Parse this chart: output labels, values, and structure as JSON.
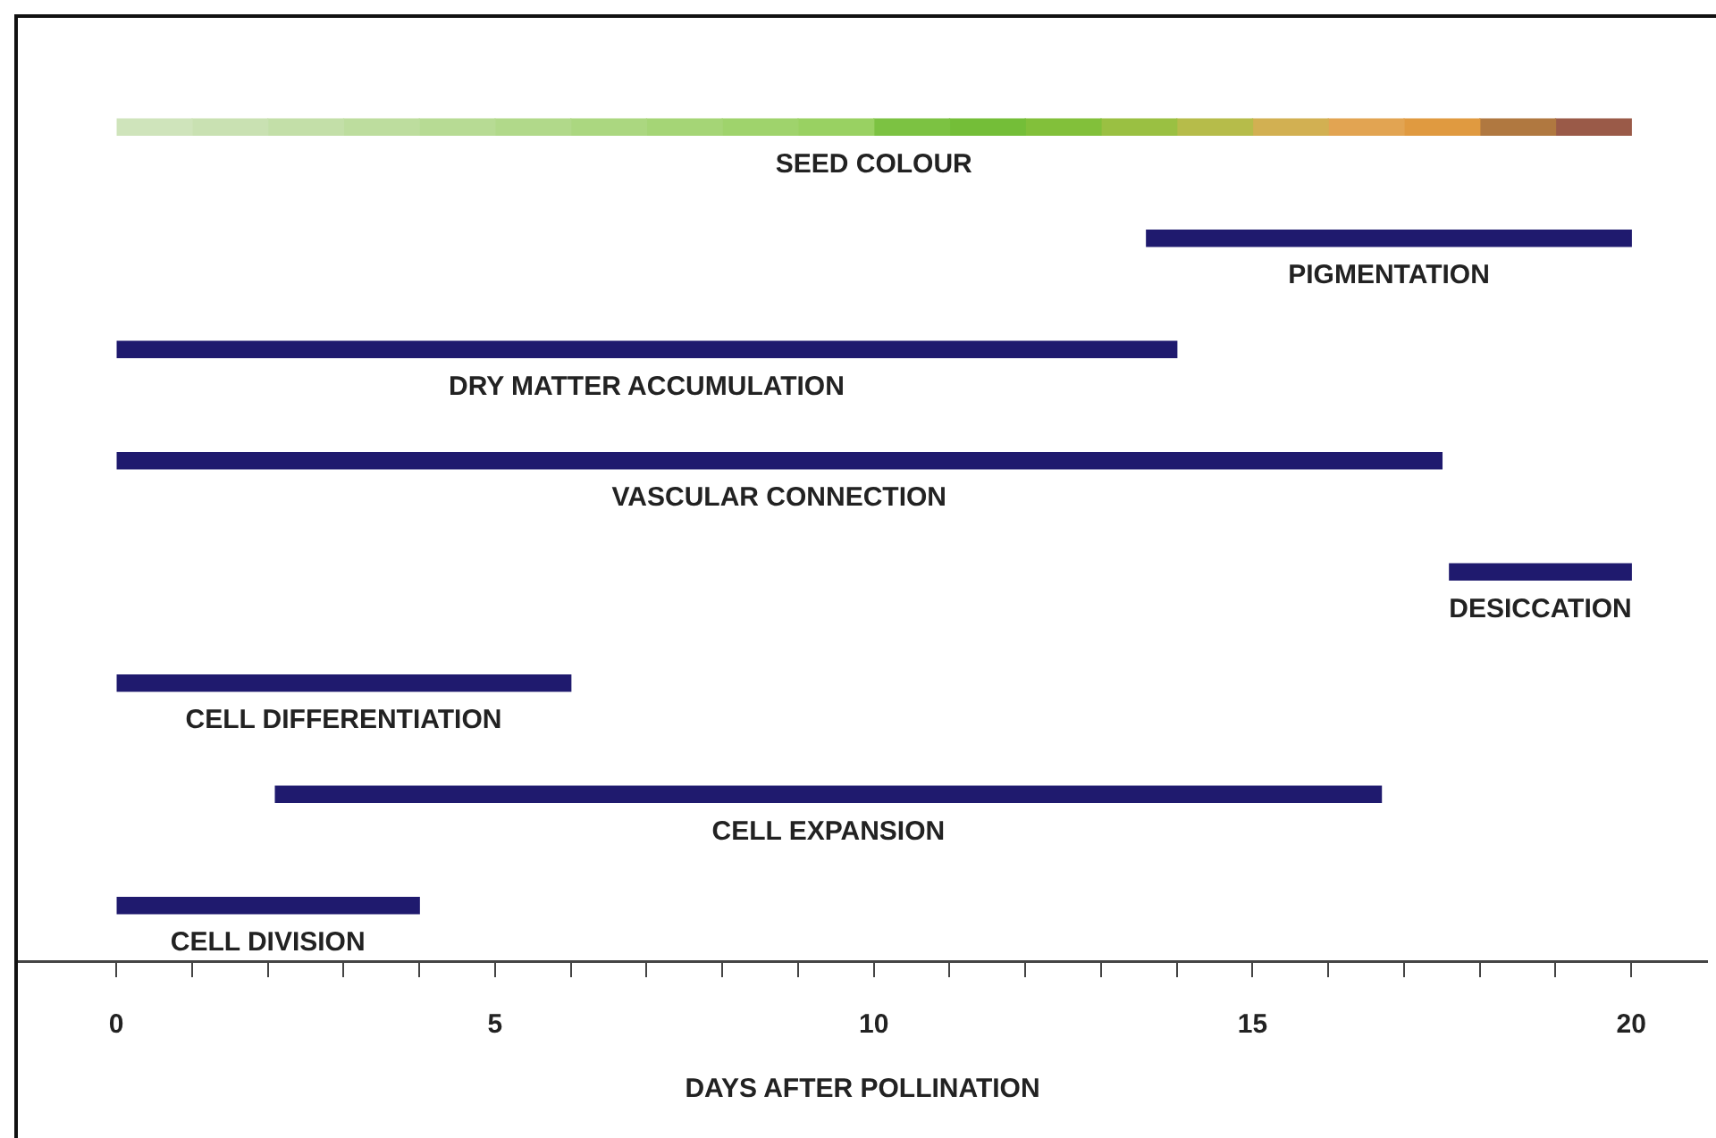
{
  "chart_data": {
    "type": "bar",
    "orientation": "horizontal",
    "tick_labels": "x",
    "grid": false,
    "legend": false,
    "xlabel": "DAYS AFTER POLLINATION",
    "categories": [
      "SEED COLOUR",
      "PIGMENTATION",
      "DRY MATTER ACCUMULATION",
      "VASCULAR CONNECTION",
      "DESICCATION",
      "CELL DIFFERENTIATION",
      "CELL EXPANSION",
      "CELL DIVISION"
    ],
    "xlim": [
      -1.3,
      21
    ],
    "xticks": [
      0,
      {
        "value": 1,
        "label": null
      },
      {
        "value": 2,
        "label": null
      },
      {
        "value": 3,
        "label": null
      },
      {
        "value": 4,
        "label": null
      },
      5,
      {
        "value": 6,
        "label": null
      },
      {
        "value": 7,
        "label": null
      },
      {
        "value": 8,
        "label": null
      },
      {
        "value": 9,
        "label": null
      },
      10,
      {
        "value": 11,
        "label": null
      },
      {
        "value": 12,
        "label": null
      },
      {
        "value": 13,
        "label": null
      },
      {
        "value": 14,
        "label": null
      },
      15,
      {
        "value": 16,
        "label": null
      },
      {
        "value": 17,
        "label": null
      },
      {
        "value": 18,
        "label": null
      },
      {
        "value": 19,
        "label": null
      },
      20
    ],
    "series": [
      {
        "color": "#1f1a6e",
        "values": [
          null,
          6.4,
          14.0,
          17.5,
          2.4,
          6.0,
          14.6,
          4.0
        ],
        "base": [
          null,
          13.6,
          0,
          0,
          17.6,
          0,
          2.1,
          0
        ]
      },
      {
        "color": "#cfe4bb",
        "values": [
          1,
          null,
          null,
          null,
          null,
          null,
          null,
          null
        ],
        "base": [
          0,
          null,
          null,
          null,
          null,
          null,
          null,
          null
        ]
      },
      {
        "color": "#c9e1b2",
        "values": [
          1,
          null,
          null,
          null,
          null,
          null,
          null,
          null
        ],
        "base": [
          1,
          null,
          null,
          null,
          null,
          null,
          null,
          null
        ]
      },
      {
        "color": "#c3dfa8",
        "values": [
          1,
          null,
          null,
          null,
          null,
          null,
          null,
          null
        ],
        "base": [
          2,
          null,
          null,
          null,
          null,
          null,
          null,
          null
        ]
      },
      {
        "color": "#bddd9e",
        "values": [
          1,
          null,
          null,
          null,
          null,
          null,
          null,
          null
        ],
        "base": [
          3,
          null,
          null,
          null,
          null,
          null,
          null,
          null
        ]
      },
      {
        "color": "#b7db94",
        "values": [
          1,
          null,
          null,
          null,
          null,
          null,
          null,
          null
        ],
        "base": [
          4,
          null,
          null,
          null,
          null,
          null,
          null,
          null
        ]
      },
      {
        "color": "#b1d98a",
        "values": [
          1,
          null,
          null,
          null,
          null,
          null,
          null,
          null
        ],
        "base": [
          5,
          null,
          null,
          null,
          null,
          null,
          null,
          null
        ]
      },
      {
        "color": "#abd780",
        "values": [
          1,
          null,
          null,
          null,
          null,
          null,
          null,
          null
        ],
        "base": [
          6,
          null,
          null,
          null,
          null,
          null,
          null,
          null
        ]
      },
      {
        "color": "#a5d576",
        "values": [
          1,
          null,
          null,
          null,
          null,
          null,
          null,
          null
        ],
        "base": [
          7,
          null,
          null,
          null,
          null,
          null,
          null,
          null
        ]
      },
      {
        "color": "#9fd36c",
        "values": [
          1,
          null,
          null,
          null,
          null,
          null,
          null,
          null
        ],
        "base": [
          8,
          null,
          null,
          null,
          null,
          null,
          null,
          null
        ]
      },
      {
        "color": "#99d162",
        "values": [
          1,
          null,
          null,
          null,
          null,
          null,
          null,
          null
        ],
        "base": [
          9,
          null,
          null,
          null,
          null,
          null,
          null,
          null
        ]
      },
      {
        "color": "#7cc242",
        "values": [
          1,
          null,
          null,
          null,
          null,
          null,
          null,
          null
        ],
        "base": [
          10,
          null,
          null,
          null,
          null,
          null,
          null,
          null
        ]
      },
      {
        "color": "#74be38",
        "values": [
          1,
          null,
          null,
          null,
          null,
          null,
          null,
          null
        ],
        "base": [
          11,
          null,
          null,
          null,
          null,
          null,
          null,
          null
        ]
      },
      {
        "color": "#82c03a",
        "values": [
          1,
          null,
          null,
          null,
          null,
          null,
          null,
          null
        ],
        "base": [
          12,
          null,
          null,
          null,
          null,
          null,
          null,
          null
        ]
      },
      {
        "color": "#9ac042",
        "values": [
          1,
          null,
          null,
          null,
          null,
          null,
          null,
          null
        ],
        "base": [
          13,
          null,
          null,
          null,
          null,
          null,
          null,
          null
        ]
      },
      {
        "color": "#b6bc4a",
        "values": [
          1,
          null,
          null,
          null,
          null,
          null,
          null,
          null
        ],
        "base": [
          14,
          null,
          null,
          null,
          null,
          null,
          null,
          null
        ]
      },
      {
        "color": "#d2b052",
        "values": [
          1,
          null,
          null,
          null,
          null,
          null,
          null,
          null
        ],
        "base": [
          15,
          null,
          null,
          null,
          null,
          null,
          null,
          null
        ]
      },
      {
        "color": "#e2a452",
        "values": [
          1,
          null,
          null,
          null,
          null,
          null,
          null,
          null
        ],
        "base": [
          16,
          null,
          null,
          null,
          null,
          null,
          null,
          null
        ]
      },
      {
        "color": "#e09a40",
        "values": [
          1,
          null,
          null,
          null,
          null,
          null,
          null,
          null
        ],
        "base": [
          17,
          null,
          null,
          null,
          null,
          null,
          null,
          null
        ]
      },
      {
        "color": "#b07840",
        "values": [
          1,
          null,
          null,
          null,
          null,
          null,
          null,
          null
        ],
        "base": [
          18,
          null,
          null,
          null,
          null,
          null,
          null,
          null
        ]
      },
      {
        "color": "#9a5a48",
        "values": [
          1,
          null,
          null,
          null,
          null,
          null,
          null,
          null
        ],
        "base": [
          19,
          null,
          null,
          null,
          null,
          null,
          null,
          null
        ]
      }
    ]
  }
}
